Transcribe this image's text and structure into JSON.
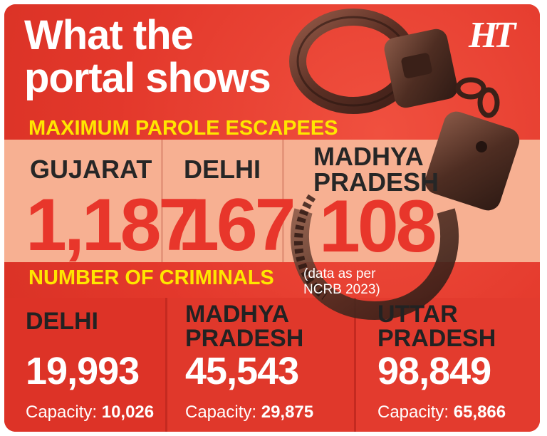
{
  "title_line1": "What the",
  "title_line2": "portal shows",
  "logo": "HT",
  "colors": {
    "background": "#e53a2e",
    "band": "#f7b092",
    "highlight": "#ffe600",
    "number_red": "#e8362b"
  },
  "parole": {
    "heading": "MAXIMUM PAROLE ESCAPEES",
    "items": [
      {
        "state_line1": "GUJARAT",
        "state_line2": "",
        "value": "1,187"
      },
      {
        "state_line1": "DELHI",
        "state_line2": "",
        "value": "167"
      },
      {
        "state_line1": "MADHYA",
        "state_line2": "PRADESH",
        "value": "108"
      }
    ]
  },
  "note_line1": "(data as per",
  "note_line2": "NCRB 2023)",
  "criminals": {
    "heading": "NUMBER OF CRIMINALS",
    "capacity_label": "Capacity:",
    "items": [
      {
        "state_line1": "DELHI",
        "state_line2": "",
        "value": "19,993",
        "capacity": "10,026"
      },
      {
        "state_line1": "MADHYA",
        "state_line2": "PRADESH",
        "value": "45,543",
        "capacity": "29,875"
      },
      {
        "state_line1": "UTTAR",
        "state_line2": "PRADESH",
        "value": "98,849",
        "capacity": "65,866"
      }
    ]
  },
  "decoration": {
    "image": "handcuffs-illustration"
  }
}
